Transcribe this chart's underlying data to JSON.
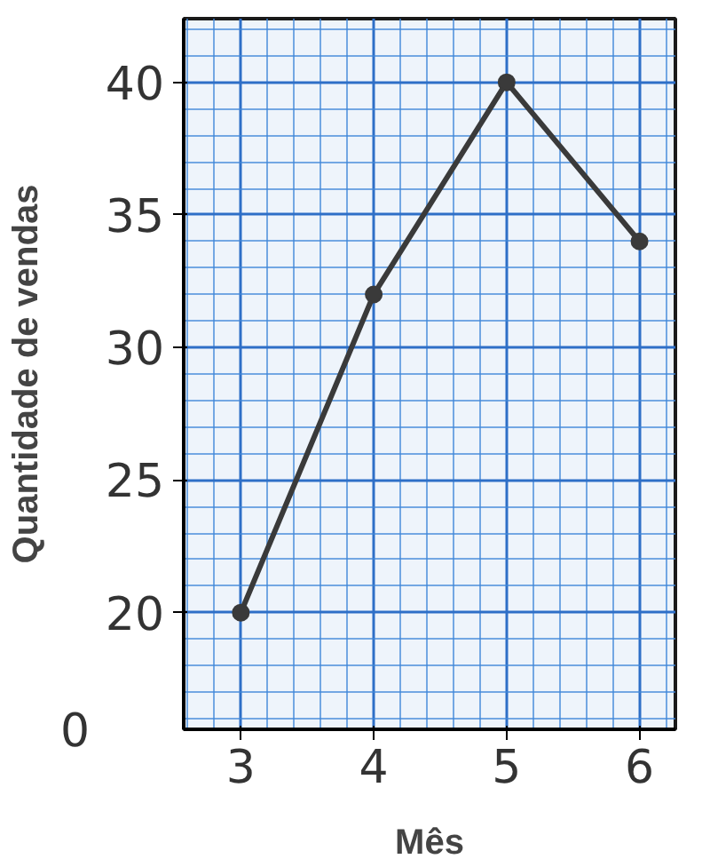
{
  "chart_data": {
    "type": "line",
    "xlabel": "Mês",
    "ylabel": "Quantidade de vendas",
    "x": [
      3,
      4,
      5,
      6
    ],
    "series": [
      {
        "color": "#3a3a3a",
        "values": [
          20,
          32,
          40,
          34
        ]
      }
    ],
    "xlim": [
      2.57,
      6.27
    ],
    "ylim": [
      15.6,
      42.4
    ],
    "xticks": [
      3,
      4,
      5,
      6
    ],
    "yticks": [
      20,
      25,
      30,
      35,
      40
    ],
    "annotations": [
      "0"
    ],
    "grid": true,
    "marker": "circle",
    "line_style": "solid"
  }
}
